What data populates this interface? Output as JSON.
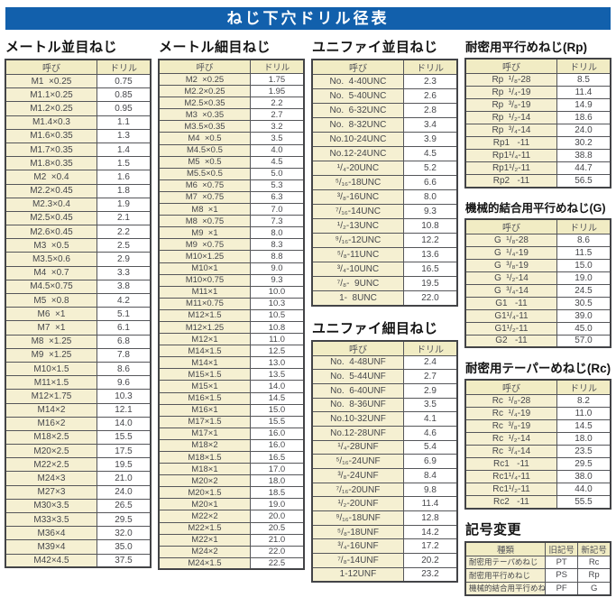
{
  "title": "ねじ下穴ドリル径表",
  "sections": {
    "metric_coarse": {
      "title": "メートル並目ねじ",
      "headers": [
        "呼び",
        "ドリル"
      ],
      "rows": [
        [
          "M1  ×0.25",
          "0.75"
        ],
        [
          "M1.1×0.25",
          "0.85"
        ],
        [
          "M1.2×0.25",
          "0.95"
        ],
        [
          "M1.4×0.3",
          "1.1"
        ],
        [
          "M1.6×0.35",
          "1.3"
        ],
        [
          "M1.7×0.35",
          "1.4"
        ],
        [
          "M1.8×0.35",
          "1.5"
        ],
        [
          "M2  ×0.4",
          "1.6"
        ],
        [
          "M2.2×0.45",
          "1.8"
        ],
        [
          "M2.3×0.4",
          "1.9"
        ],
        [
          "M2.5×0.45",
          "2.1"
        ],
        [
          "M2.6×0.45",
          "2.2"
        ],
        [
          "M3  ×0.5",
          "2.5"
        ],
        [
          "M3.5×0.6",
          "2.9"
        ],
        [
          "M4  ×0.7",
          "3.3"
        ],
        [
          "M4.5×0.75",
          "3.8"
        ],
        [
          "M5  ×0.8",
          "4.2"
        ],
        [
          "M6  ×1",
          "5.1"
        ],
        [
          "M7  ×1",
          "6.1"
        ],
        [
          "M8  ×1.25",
          "6.8"
        ],
        [
          "M9  ×1.25",
          "7.8"
        ],
        [
          "M10×1.5",
          "8.6"
        ],
        [
          "M11×1.5",
          "9.6"
        ],
        [
          "M12×1.75",
          "10.3"
        ],
        [
          "M14×2",
          "12.1"
        ],
        [
          "M16×2",
          "14.0"
        ],
        [
          "M18×2.5",
          "15.5"
        ],
        [
          "M20×2.5",
          "17.5"
        ],
        [
          "M22×2.5",
          "19.5"
        ],
        [
          "M24×3",
          "21.0"
        ],
        [
          "M27×3",
          "24.0"
        ],
        [
          "M30×3.5",
          "26.5"
        ],
        [
          "M33×3.5",
          "29.5"
        ],
        [
          "M36×4",
          "32.0"
        ],
        [
          "M39×4",
          "35.0"
        ],
        [
          "M42×4.5",
          "37.5"
        ]
      ]
    },
    "metric_fine": {
      "title": "メートル細目ねじ",
      "headers": [
        "呼び",
        "ドリル"
      ],
      "rows": [
        [
          "M2  ×0.25",
          "1.75"
        ],
        [
          "M2.2×0.25",
          "1.95"
        ],
        [
          "M2.5×0.35",
          "2.2"
        ],
        [
          "M3  ×0.35",
          "2.7"
        ],
        [
          "M3.5×0.35",
          "3.2"
        ],
        [
          "M4  ×0.5",
          "3.5"
        ],
        [
          "M4.5×0.5",
          "4.0"
        ],
        [
          "M5  ×0.5",
          "4.5"
        ],
        [
          "M5.5×0.5",
          "5.0"
        ],
        [
          "M6  ×0.75",
          "5.3"
        ],
        [
          "M7  ×0.75",
          "6.3"
        ],
        [
          "M8  ×1",
          "7.0"
        ],
        [
          "M8  ×0.75",
          "7.3"
        ],
        [
          "M9  ×1",
          "8.0"
        ],
        [
          "M9  ×0.75",
          "8.3"
        ],
        [
          "M10×1.25",
          "8.8"
        ],
        [
          "M10×1",
          "9.0"
        ],
        [
          "M10×0.75",
          "9.3"
        ],
        [
          "M11×1",
          "10.0"
        ],
        [
          "M11×0.75",
          "10.3"
        ],
        [
          "M12×1.5",
          "10.5"
        ],
        [
          "M12×1.25",
          "10.8"
        ],
        [
          "M12×1",
          "11.0"
        ],
        [
          "M14×1.5",
          "12.5"
        ],
        [
          "M14×1",
          "13.0"
        ],
        [
          "M15×1.5",
          "13.5"
        ],
        [
          "M15×1",
          "14.0"
        ],
        [
          "M16×1.5",
          "14.5"
        ],
        [
          "M16×1",
          "15.0"
        ],
        [
          "M17×1.5",
          "15.5"
        ],
        [
          "M17×1",
          "16.0"
        ],
        [
          "M18×2",
          "16.0"
        ],
        [
          "M18×1.5",
          "16.5"
        ],
        [
          "M18×1",
          "17.0"
        ],
        [
          "M20×2",
          "18.0"
        ],
        [
          "M20×1.5",
          "18.5"
        ],
        [
          "M20×1",
          "19.0"
        ],
        [
          "M22×2",
          "20.0"
        ],
        [
          "M22×1.5",
          "20.5"
        ],
        [
          "M22×1",
          "21.0"
        ],
        [
          "M24×2",
          "22.0"
        ],
        [
          "M24×1.5",
          "22.5"
        ]
      ]
    },
    "unified_coarse": {
      "title": "ユニファイ並目ねじ",
      "headers": [
        "呼び",
        "ドリル"
      ],
      "rows": [
        [
          "No.  4-40UNC",
          "2.3"
        ],
        [
          "No.  5-40UNC",
          "2.6"
        ],
        [
          "No.  6-32UNC",
          "2.8"
        ],
        [
          "No.  8-32UNC",
          "3.4"
        ],
        [
          "No.10-24UNC",
          "3.9"
        ],
        [
          "No.12-24UNC",
          "4.5"
        ],
        [
          "¹/₄-20UNC",
          "5.2"
        ],
        [
          "⁵/₁₆-18UNC",
          "6.6"
        ],
        [
          "³/₈-16UNC",
          "8.0"
        ],
        [
          "⁷/₁₆-14UNC",
          "9.3"
        ],
        [
          "¹/₂-13UNC",
          "10.8"
        ],
        [
          "⁹/₁₆-12UNC",
          "12.2"
        ],
        [
          "⁵/₈-11UNC",
          "13.6"
        ],
        [
          "³/₄-10UNC",
          "16.5"
        ],
        [
          "⁷/₈-  9UNC",
          "19.5"
        ],
        [
          "1-  8UNC",
          "22.0"
        ]
      ]
    },
    "unified_fine": {
      "title": "ユニファイ細目ねじ",
      "headers": [
        "呼び",
        "ドリル"
      ],
      "rows": [
        [
          "No.  4-48UNF",
          "2.4"
        ],
        [
          "No.  5-44UNF",
          "2.7"
        ],
        [
          "No.  6-40UNF",
          "2.9"
        ],
        [
          "No.  8-36UNF",
          "3.5"
        ],
        [
          "No.10-32UNF",
          "4.1"
        ],
        [
          "No.12-28UNF",
          "4.6"
        ],
        [
          "¹/₄-28UNF",
          "5.4"
        ],
        [
          "⁵/₁₆-24UNF",
          "6.9"
        ],
        [
          "³/₈-24UNF",
          "8.4"
        ],
        [
          "⁷/₁₆-20UNF",
          "9.8"
        ],
        [
          "¹/₂-20UNF",
          "11.4"
        ],
        [
          "⁹/₁₆-18UNF",
          "12.8"
        ],
        [
          "⁵/₈-18UNF",
          "14.2"
        ],
        [
          "³/₄-16UNF",
          "17.2"
        ],
        [
          "⁷/₈-14UNF",
          "20.2"
        ],
        [
          "1-12UNF",
          "23.2"
        ]
      ]
    },
    "rp": {
      "title": "耐密用平行めねじ(Rp)",
      "headers": [
        "呼び",
        "ドリル"
      ],
      "rows": [
        [
          "Rp  ¹/₈-28",
          "8.5"
        ],
        [
          "Rp  ¹/₄-19",
          "11.4"
        ],
        [
          "Rp  ³/₈-19",
          "14.9"
        ],
        [
          "Rp  ¹/₂-14",
          "18.6"
        ],
        [
          "Rp  ³/₄-14",
          "24.0"
        ],
        [
          "Rp1   -11",
          "30.2"
        ],
        [
          "Rp1¹/₄-11",
          "38.8"
        ],
        [
          "Rp1¹/₂-11",
          "44.7"
        ],
        [
          "Rp2   -11",
          "56.5"
        ]
      ]
    },
    "g": {
      "title": "機械的結合用平行めねじ(G)",
      "headers": [
        "呼び",
        "ドリル"
      ],
      "rows": [
        [
          "G  ¹/₈-28",
          "8.6"
        ],
        [
          "G  ¹/₄-19",
          "11.5"
        ],
        [
          "G  ³/₈-19",
          "15.0"
        ],
        [
          "G  ¹/₂-14",
          "19.0"
        ],
        [
          "G  ³/₄-14",
          "24.5"
        ],
        [
          "G1   -11",
          "30.5"
        ],
        [
          "G1¹/₄-11",
          "39.0"
        ],
        [
          "G1¹/₂-11",
          "45.0"
        ],
        [
          "G2   -11",
          "57.0"
        ]
      ]
    },
    "rc": {
      "title": "耐密用テーパーめねじ(Rc)",
      "headers": [
        "呼び",
        "ドリル"
      ],
      "rows": [
        [
          "Rc  ¹/₈-28",
          "8.2"
        ],
        [
          "Rc  ¹/₄-19",
          "11.0"
        ],
        [
          "Rc  ³/₈-19",
          "14.5"
        ],
        [
          "Rc  ¹/₂-14",
          "18.0"
        ],
        [
          "Rc  ³/₄-14",
          "23.5"
        ],
        [
          "Rc1   -11",
          "29.5"
        ],
        [
          "Rc1¹/₄-11",
          "38.0"
        ],
        [
          "Rc1¹/₂-11",
          "44.0"
        ],
        [
          "Rc2   -11",
          "55.5"
        ]
      ]
    },
    "symbol_change": {
      "title": "記号変更",
      "headers": [
        "種類",
        "旧記号",
        "新記号"
      ],
      "rows": [
        [
          "耐密用テーパめねじ",
          "PT",
          "Rc"
        ],
        [
          "耐密用平行めねじ",
          "PS",
          "Rp"
        ],
        [
          "機械的結合用平行めねじ",
          "PF",
          "G"
        ]
      ]
    }
  },
  "colors": {
    "title_bar": "#1260ac",
    "cell_cream": "#f5f0d2",
    "header_cream": "#f1ecc4",
    "border": "#55565a",
    "text": "#46474b"
  }
}
